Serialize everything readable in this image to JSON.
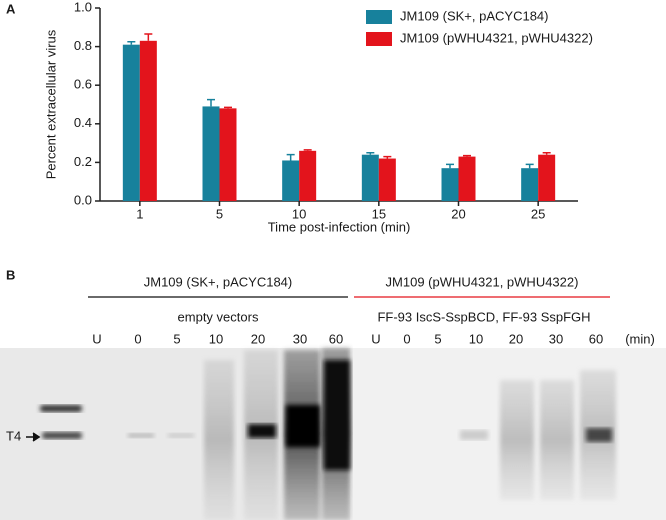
{
  "chart_data": {
    "type": "bar",
    "panel": "A",
    "x_label": "Time post-infection (min)",
    "y_label": "Percent extracellular virus",
    "categories": [
      "1",
      "5",
      "10",
      "15",
      "20",
      "25"
    ],
    "series": [
      {
        "name": "JM109 (SK+, pACYC184)",
        "color": "#17819c",
        "values": [
          0.81,
          0.49,
          0.21,
          0.24,
          0.17,
          0.17
        ],
        "errors": [
          0.015,
          0.035,
          0.03,
          0.01,
          0.02,
          0.02
        ]
      },
      {
        "name": "JM109 (pWHU4321, pWHU4322)",
        "color": "#e3141c",
        "values": [
          0.83,
          0.48,
          0.26,
          0.22,
          0.23,
          0.24
        ],
        "errors": [
          0.035,
          0.005,
          0.005,
          0.01,
          0.005,
          0.01
        ]
      }
    ],
    "ylim": [
      0,
      1
    ],
    "yticks": [
      {
        "value": 0,
        "label": "0.0"
      },
      0.2,
      0.4,
      0.6,
      0.8,
      {
        "value": 1,
        "label": "1.0"
      }
    ],
    "legend": "upper right",
    "grid": false
  },
  "gel": {
    "panel": "B",
    "left_group": {
      "strain": "JM109 (SK+, pACYC184)",
      "plasmids": "empty vectors",
      "lanes": [
        "U",
        "0",
        "5",
        "10",
        "20",
        "30",
        "60"
      ]
    },
    "right_group": {
      "strain": "JM109 (pWHU4321, pWHU4322)",
      "plasmids": "FF-93 IscS-SspBCD, FF-93 SspFGH",
      "lanes": [
        "U",
        "0",
        "5",
        "10",
        "20",
        "30",
        "60"
      ]
    },
    "unit": "(min)",
    "marker": "T4"
  }
}
